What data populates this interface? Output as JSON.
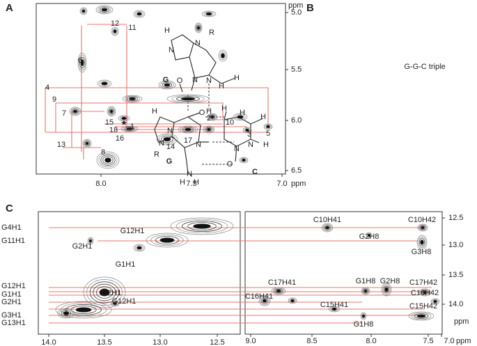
{
  "panels": {
    "A": {
      "label": "A",
      "unit_top": "ppm",
      "unit_bottom": "ppm",
      "xticks": [
        "8.0",
        "7.5",
        "7.0"
      ],
      "yticks": [
        "5.0",
        "5.5",
        "6.0",
        "6.5"
      ],
      "peaks": [
        "12",
        "11",
        "6",
        "4",
        "9",
        "7",
        "15",
        "2",
        "10",
        "★",
        "1",
        "18",
        "5",
        "3",
        "16",
        "17",
        "13",
        "8",
        "14"
      ]
    },
    "B": {
      "label": "B",
      "title": "G-G-C triple",
      "bases": [
        "G",
        "G",
        "C"
      ],
      "atoms": [
        "H",
        "N",
        "R",
        "N",
        "N",
        "O",
        "N",
        "H",
        "H",
        "H",
        "N",
        "N",
        "R",
        "O",
        "N",
        "H",
        "N",
        "H",
        "H",
        "H",
        "H",
        "N",
        "O",
        "N",
        "H",
        "H"
      ]
    },
    "C": {
      "label": "C",
      "unit_right": "ppm",
      "unit_bottom": "ppm",
      "left_xticks": [
        "14.0",
        "13.5",
        "13.0",
        "12.5"
      ],
      "right_xticks": [
        "9.0",
        "8.5",
        "8.0",
        "7.5",
        "7.0"
      ],
      "yticks": [
        "12.5",
        "13.0",
        "13.5",
        "14.0"
      ],
      "row_labels": [
        "G4H1",
        "G11H1",
        "G12H1",
        "G1H1",
        "G2H1",
        "G3H1",
        "G13H1"
      ],
      "left_peaks": [
        "G12H1",
        "G2H1",
        "G1H1",
        "G2H1",
        "G12H1"
      ],
      "right_peaks": [
        "C10H41",
        "C10H42",
        "G2H8",
        "G3H8",
        "G1H8",
        "G2H8",
        "C17H42",
        "C17H41",
        "C16H42",
        "C16H41",
        "C15H41",
        "C15H42",
        "G1H8"
      ]
    }
  }
}
